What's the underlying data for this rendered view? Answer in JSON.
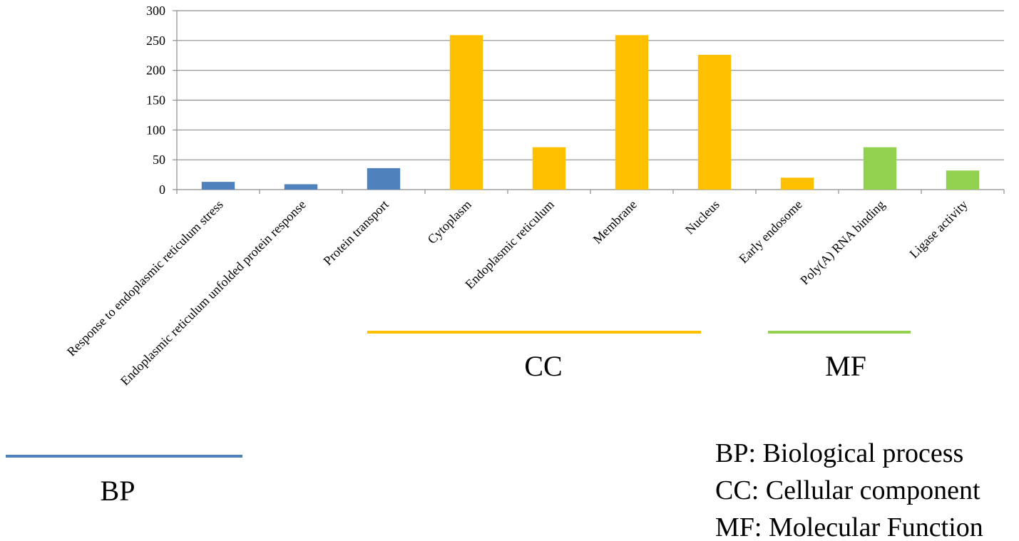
{
  "chart_data": {
    "type": "bar",
    "categories": [
      "Response to endoplasmic reticulum stress",
      "Endoplasmic reticulum unfolded protein response",
      "Protein transport",
      "Cytoplasm",
      "Endoplasmic reticulum",
      "Membrane",
      "Nucleus",
      "Early endosome",
      "Poly(A) RNA binding",
      "Ligase activity"
    ],
    "values": [
      13,
      9,
      36,
      259,
      71,
      259,
      226,
      20,
      71,
      32
    ],
    "bar_groups": [
      "BP",
      "BP",
      "BP",
      "CC",
      "CC",
      "CC",
      "CC",
      "CC",
      "MF",
      "MF"
    ],
    "ylim": [
      0,
      300
    ],
    "yticks": [
      0,
      50,
      100,
      150,
      200,
      250,
      300
    ],
    "grid": true,
    "colors": {
      "BP": "#4F81BD",
      "CC": "#FFC000",
      "MF": "#92D050"
    },
    "groups": [
      {
        "key": "BP",
        "label": "BP",
        "color": "#4F81BD"
      },
      {
        "key": "CC",
        "label": "CC",
        "color": "#FFC000"
      },
      {
        "key": "MF",
        "label": "MF",
        "color": "#92D050"
      }
    ],
    "legend_lines": [
      "BP: Biological process",
      "CC: Cellular component",
      "MF: Molecular Function"
    ]
  }
}
